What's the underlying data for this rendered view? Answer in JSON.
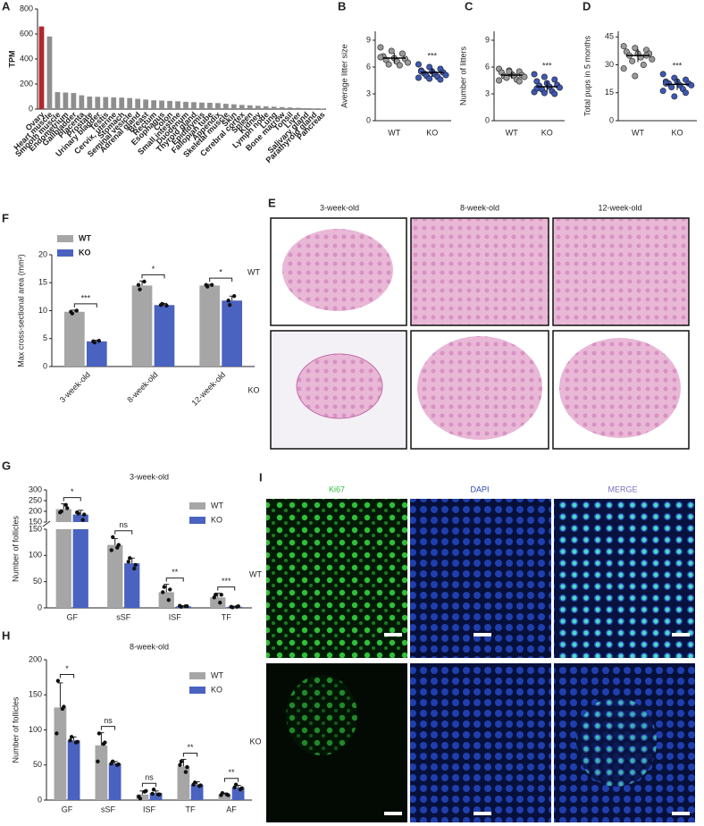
{
  "chart_data": [
    {
      "type": "bar",
      "panel_label": "A",
      "ylabel": "TPM",
      "categories": [
        "Ovary",
        "Heart muscle",
        "Smooth muscle",
        "Endometrium",
        "Gallbladder",
        "Placenta",
        "Prostate",
        "Urinary bladder",
        "Testis",
        "Cervix, uterine",
        "Stomach",
        "Seminal vesicle",
        "Adrenal gland",
        "Breast",
        "Rectum",
        "Esophagus",
        "Colon",
        "Small intestine",
        "Duodenum",
        "Thyroid gland",
        "Epididymis",
        "Fallopian tube",
        "Appendix",
        "Skeletal muscle",
        "Skin",
        "Cerebral cortex",
        "Spleen",
        "Kidney",
        "Lymph node",
        "Lung",
        "Bone marrow",
        "Tonsil",
        "Liver",
        "Salivary gland",
        "Parathyroid gland",
        "Pancreas"
      ],
      "values": [
        660,
        580,
        135,
        132,
        128,
        110,
        100,
        98,
        96,
        94,
        92,
        88,
        82,
        76,
        70,
        68,
        65,
        62,
        58,
        55,
        52,
        50,
        48,
        42,
        38,
        33,
        30,
        26,
        22,
        19,
        16,
        13,
        10,
        7,
        5,
        3
      ],
      "colors": [
        "#b3262d",
        "#8e8e8e",
        "#8e8e8e",
        "#8e8e8e",
        "#8e8e8e",
        "#8e8e8e",
        "#8e8e8e",
        "#8e8e8e",
        "#8e8e8e",
        "#8e8e8e",
        "#8e8e8e",
        "#8e8e8e",
        "#8e8e8e",
        "#8e8e8e",
        "#8e8e8e",
        "#8e8e8e",
        "#8e8e8e",
        "#8e8e8e",
        "#8e8e8e",
        "#8e8e8e",
        "#8e8e8e",
        "#8e8e8e",
        "#8e8e8e",
        "#8e8e8e",
        "#8e8e8e",
        "#8e8e8e",
        "#8e8e8e",
        "#8e8e8e",
        "#8e8e8e",
        "#8e8e8e",
        "#8e8e8e",
        "#8e8e8e",
        "#8e8e8e",
        "#8e8e8e",
        "#8e8e8e",
        "#8e8e8e"
      ],
      "ylim": [
        0,
        800
      ],
      "yticks": [
        0,
        200,
        400,
        600,
        800
      ]
    },
    {
      "type": "strip",
      "panel_label": "B",
      "ylabel": "Average litter size",
      "categories": [
        "WT",
        "KO"
      ],
      "values": [
        [
          8.2,
          7.8,
          7.5,
          7.2,
          7,
          6.9,
          6.8,
          6.6,
          6.5,
          6.3,
          6.2,
          7.1
        ],
        [
          6.3,
          6,
          5.8,
          5.6,
          5.5,
          5.4,
          5.3,
          5.2,
          5.1,
          5,
          4.9,
          4.8,
          4.7,
          4.6,
          5.5
        ]
      ],
      "mean": [
        7,
        5.4
      ],
      "sd": [
        0.6,
        0.5
      ],
      "colors": [
        "#9a9a9a",
        "#3c58b4"
      ],
      "annotation": "***",
      "ylim": [
        0,
        10
      ],
      "yticks": [
        0,
        3,
        6,
        9
      ]
    },
    {
      "type": "strip",
      "panel_label": "C",
      "ylabel": "Number of litters",
      "categories": [
        "WT",
        "KO"
      ],
      "values": [
        [
          5.8,
          5.6,
          5.5,
          5.4,
          5.2,
          5.1,
          5,
          5,
          4.9,
          4.8,
          4.6,
          4.5,
          5.5,
          4.4
        ],
        [
          5.2,
          4.9,
          4.6,
          4.4,
          4.2,
          4,
          3.9,
          3.8,
          3.7,
          3.5,
          3.3,
          3.2,
          3.1,
          3,
          3.6
        ]
      ],
      "mean": [
        5.1,
        3.8
      ],
      "sd": [
        0.4,
        0.6
      ],
      "colors": [
        "#9a9a9a",
        "#3c58b4"
      ],
      "annotation": "***",
      "ylim": [
        0,
        10
      ],
      "yticks": [
        0,
        3,
        6,
        9
      ]
    },
    {
      "type": "strip",
      "panel_label": "D",
      "ylabel": "Total pups in 5 months",
      "categories": [
        "WT",
        "KO"
      ],
      "values": [
        [
          40,
          39,
          38,
          37,
          36,
          36,
          35,
          34,
          33,
          32,
          30,
          28,
          24,
          35
        ],
        [
          25,
          23,
          22,
          21,
          21,
          20,
          20,
          19,
          19,
          18,
          17,
          16,
          13,
          15,
          20
        ]
      ],
      "mean": [
        35,
        19.5
      ],
      "sd": [
        3.5,
        3
      ],
      "colors": [
        "#9a9a9a",
        "#3c58b4"
      ],
      "annotation": "***",
      "ylim": [
        0,
        48
      ],
      "yticks": [
        0,
        15,
        30,
        45
      ]
    },
    {
      "type": "grouped_bar",
      "panel_label": "F",
      "ylabel": "Max cross-sectional area (mm²)",
      "legend": "upper left",
      "categories": [
        "3-week-old",
        "8-week-old",
        "12-week-old"
      ],
      "series": [
        {
          "name": "WT",
          "color": "#a6a6a6",
          "values": [
            9.8,
            14.5,
            14.5
          ],
          "errors": [
            0.3,
            0.8,
            0.2
          ],
          "points": [
            [
              9.5,
              10,
              9.8
            ],
            [
              13.8,
              15.2,
              14.6
            ],
            [
              14.3,
              14.6,
              14.6
            ]
          ]
        },
        {
          "name": "KO",
          "color": "#4a62c0",
          "values": [
            4.5,
            11,
            11.8
          ],
          "errors": [
            0.2,
            0.3,
            0.8
          ],
          "points": [
            [
              4.3,
              4.6,
              4.5
            ],
            [
              11.2,
              10.9,
              11
            ],
            [
              11,
              12.6,
              11.8
            ]
          ]
        }
      ],
      "annotations": [
        "***",
        "*",
        "*"
      ],
      "ylim": [
        0,
        20
      ],
      "yticks": [
        0,
        5,
        10,
        15,
        20
      ]
    },
    {
      "type": "grouped_bar",
      "panel_label": "G",
      "title": "3-week-old",
      "ylabel": "Number of follicles",
      "legend": "upper right",
      "categories": [
        "GF",
        "sSF",
        "ISF",
        "TF"
      ],
      "series": [
        {
          "name": "WT",
          "color": "#a6a6a6",
          "values": [
            210,
            120,
            30,
            20
          ],
          "errors": [
            25,
            12,
            15,
            8
          ],
          "points": [
            [
              200,
              230,
              195,
              215
            ],
            [
              135,
              115,
              110,
              120
            ],
            [
              40,
              15,
              30,
              35
            ],
            [
              25,
              10,
              20,
              25
            ]
          ]
        },
        {
          "name": "KO",
          "color": "#4a62c0",
          "values": [
            185,
            85,
            3,
            2
          ],
          "errors": [
            20,
            10,
            1,
            1
          ],
          "points": [
            [
              190,
              160,
              195,
              185
            ],
            [
              95,
              75,
              88,
              82
            ],
            [
              2,
              3,
              4,
              3
            ],
            [
              1,
              2,
              2,
              3
            ]
          ]
        }
      ],
      "annotations": [
        "*",
        "ns",
        "**",
        "***"
      ],
      "ysegments": [
        {
          "lim": [
            0,
            150
          ],
          "ticks": [
            0,
            50,
            100,
            150
          ]
        },
        {
          "lim": [
            150,
            300
          ],
          "ticks": [
            150,
            200,
            250,
            300
          ]
        }
      ]
    },
    {
      "type": "grouped_bar",
      "panel_label": "H",
      "title": "8-week-old",
      "ylabel": "Number of follicles",
      "legend": "upper right",
      "categories": [
        "GF",
        "sSF",
        "ISF",
        "TF",
        "AF"
      ],
      "series": [
        {
          "name": "WT",
          "color": "#a6a6a6",
          "values": [
            132,
            78,
            8,
            48,
            8
          ],
          "errors": [
            35,
            18,
            5,
            10,
            2
          ],
          "points": [
            [
              170,
              130,
              95,
              133
            ],
            [
              95,
              80,
              55,
              82
            ],
            [
              2,
              12,
              5,
              13
            ],
            [
              55,
              40,
              50,
              47
            ],
            [
              10,
              8,
              7,
              7
            ]
          ]
        },
        {
          "name": "KO",
          "color": "#4a62c0",
          "values": [
            85,
            52,
            10,
            22,
            18
          ],
          "errors": [
            5,
            3,
            3,
            4,
            3
          ],
          "points": [
            [
              90,
              82,
              85,
              83
            ],
            [
              55,
              50,
              52,
              51
            ],
            [
              15,
              8,
              9,
              8
            ],
            [
              25,
              20,
              22,
              21
            ],
            [
              22,
              15,
              18,
              17
            ]
          ]
        }
      ],
      "annotations": [
        "*",
        "ns",
        "ns",
        "**",
        "**"
      ],
      "ylim": [
        0,
        200
      ],
      "yticks": [
        0,
        50,
        100,
        150,
        200
      ]
    }
  ],
  "figures": [
    {
      "panel_label": "E",
      "columns": [
        "3-week-old",
        "8-week-old",
        "12-week-old"
      ],
      "rows": [
        "WT",
        "KO"
      ]
    },
    {
      "panel_label": "I",
      "columns": [
        "Ki67",
        "DAPI",
        "MERGE"
      ],
      "rows": [
        "WT",
        "KO"
      ]
    }
  ]
}
